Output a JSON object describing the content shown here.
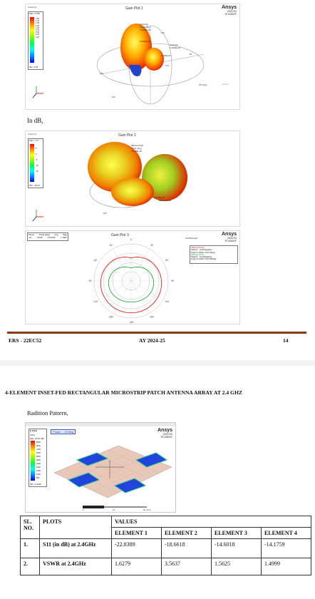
{
  "gain_plot_1": {
    "brand": "Ansys Inc.",
    "title": "Gain Plot 1",
    "ansys": {
      "name": "Ansys",
      "version": "2024 R2",
      "edition": "STUDENT"
    },
    "scale_max": "Max: 2.755",
    "scale_min": "Min: 0.00",
    "ticks": [
      "2.00",
      "1.75",
      "1.50",
      "1.25",
      "1.00",
      "0.75",
      "0.50",
      "0.25",
      "0.00"
    ],
    "annotations": [
      "GainTotal",
      "Theta (deg)",
      "3.4998E+00",
      "5.0000E+00",
      "GainTotal",
      "1.0000E+00",
      "5.000E+00"
    ],
    "dial_labels": [
      "120",
      "-150",
      "-120",
      "60",
      "120"
    ],
    "axis_label": "Phi (deg)"
  },
  "text_in_db": "In dB,",
  "gain_plot_2": {
    "brand": "Ansys Inc.",
    "title": "Gain Plot 2",
    "scale_max": "Max: 7.17",
    "scale_min": "Min: -18.21",
    "ticks": [
      "5",
      "0",
      "-5",
      "-10",
      "-15"
    ],
    "annotations": [
      "dB(GainTotal)",
      "Theta (deg)",
      "4.2728E+00",
      "4.2728E+00",
      "dB(GainTotal)"
    ],
    "dial_labels": [
      "-150"
    ]
  },
  "gain_plot_3": {
    "title": "Gain Plot 3",
    "table_headers": [
      "Name",
      "Theta [deg]",
      "Ang",
      "Mag"
    ],
    "table_row": [
      "m1",
      "-60.00",
      "2.97260",
      "7.1997"
    ],
    "ansys": {
      "name": "Ansys",
      "version": "2024 R2",
      "edition": "STUDENT"
    },
    "setup": "HFSSDesign1",
    "legend": [
      "dB(GainTotal)",
      "Setup1 : LastAdaptive",
      "Freq='2.4GHz' Phi='0deg'",
      "dB(GainTotal)",
      "Setup1 : LastAdaptive",
      "Freq='2.4GHz' Phi='90deg'"
    ],
    "angle_labels": [
      "0",
      "-30",
      "30",
      "-60",
      "60",
      "-90",
      "90",
      "-120",
      "120",
      "-150",
      "150",
      "-180"
    ]
  },
  "footer": {
    "left": "ERS - 22EC52",
    "center": "AY 2024-25",
    "right": "14"
  },
  "section_heading": "4-ELEMENT INSET-FED RECTANGULAR MICROSTRIP PATCH ANTENNA ARRAY AT 2.4 GHZ",
  "radiation_label": "Radition Pattern,",
  "field_plot": {
    "tabs": "E Field",
    "unit": "[V/m]",
    "scale_max": "Max: 9763.396",
    "scale_min": "Min: 2.3235",
    "ticks": [
      "8800",
      "8000",
      "7200",
      "6400",
      "5600",
      "4800",
      "4000",
      "3200",
      "2400",
      "1600",
      "800"
    ],
    "phase": "Phase = 100deg",
    "ansys": {
      "name": "Ansys",
      "version": "2024 R2",
      "edition": "STUDENT"
    },
    "scale_ticks": [
      "0",
      "15",
      "30 (mm)"
    ]
  },
  "table": {
    "headers": {
      "sl": "SL. NO.",
      "plots": "PLOTS",
      "values": "VALUES"
    },
    "elements": [
      "ELEMENT 1",
      "ELEMENT 2",
      "ELEMENT 3",
      "ELEMENT 4"
    ],
    "rows": [
      {
        "sl": "1.",
        "plot": "S11 (in dB) at 2.4GHz",
        "values": [
          "-22.8389",
          "-18.6618",
          "-14.6018",
          "-14.1759"
        ]
      },
      {
        "sl": "2.",
        "plot": "VSWR at 2.4GHz",
        "values": [
          "1.6279",
          "3.5637",
          "1.5625",
          "1.4999"
        ]
      }
    ]
  },
  "colors": {
    "footer_rule": "#8b3a1a",
    "red_pattern": "#e02020",
    "green_pattern": "#20b040",
    "patch_blue": "#2040e0"
  }
}
